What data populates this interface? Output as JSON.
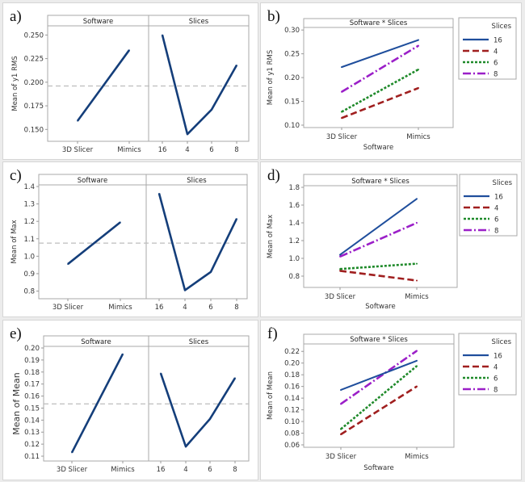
{
  "chart_data": [
    {
      "type": "line",
      "panel_label": "a)",
      "kind": "main_effects",
      "ylabel": "Mean of y1 RMS",
      "ylim": [
        0.14,
        0.258
      ],
      "yticks": [
        "0.150",
        "0.175",
        "0.200",
        "0.225",
        "0.250"
      ],
      "ytick_values": [
        0.15,
        0.175,
        0.2,
        0.225,
        0.25
      ],
      "reference_line": 0.196,
      "facets": [
        {
          "header": "Software",
          "categories": [
            "3D Slicer",
            "Mimics"
          ],
          "values": [
            0.159,
            0.234
          ]
        },
        {
          "header": "Slices",
          "categories": [
            "16",
            "4",
            "6",
            "8"
          ],
          "values": [
            0.25,
            0.145,
            0.171,
            0.218
          ]
        }
      ]
    },
    {
      "type": "line",
      "panel_label": "b)",
      "kind": "interaction",
      "header": "Software * Slices",
      "xlabel": "Software",
      "ylabel": "Mean of y1 RMS",
      "categories": [
        "3D Slicer",
        "Mimics"
      ],
      "ylim": [
        0.1,
        0.302
      ],
      "yticks": [
        "0.10",
        "0.15",
        "0.20",
        "0.25",
        "0.30"
      ],
      "ytick_values": [
        0.1,
        0.15,
        0.2,
        0.25,
        0.3
      ],
      "legend_title": "Slices",
      "legend_position": "right",
      "series": [
        {
          "name": "16",
          "values": [
            0.222,
            0.279
          ]
        },
        {
          "name": "4",
          "values": [
            0.115,
            0.178
          ]
        },
        {
          "name": "6",
          "values": [
            0.128,
            0.217
          ]
        },
        {
          "name": "8",
          "values": [
            0.17,
            0.267
          ]
        }
      ]
    },
    {
      "type": "line",
      "panel_label": "c)",
      "kind": "main_effects",
      "ylabel": "Mean of Max",
      "ylim": [
        0.77,
        1.4
      ],
      "yticks": [
        "0.8",
        "0.9",
        "1.0",
        "1.1",
        "1.2",
        "1.3",
        "1.4"
      ],
      "ytick_values": [
        0.8,
        0.9,
        1.0,
        1.1,
        1.2,
        1.3,
        1.4
      ],
      "reference_line": 1.075,
      "facets": [
        {
          "header": "Software",
          "categories": [
            "3D Slicer",
            "Mimics"
          ],
          "values": [
            0.955,
            1.195
          ]
        },
        {
          "header": "Slices",
          "categories": [
            "16",
            "4",
            "6",
            "8"
          ],
          "values": [
            1.36,
            0.805,
            0.91,
            1.215
          ]
        }
      ]
    },
    {
      "type": "line",
      "panel_label": "d)",
      "kind": "interaction",
      "header": "Software * Slices",
      "xlabel": "Software",
      "ylabel": "Mean of Max",
      "categories": [
        "3D Slicer",
        "Mimics"
      ],
      "ylim": [
        0.7,
        1.8
      ],
      "yticks": [
        "0.8",
        "1.0",
        "1.2",
        "1.4",
        "1.6",
        "1.8"
      ],
      "ytick_values": [
        0.8,
        1.0,
        1.2,
        1.4,
        1.6,
        1.8
      ],
      "legend_title": "Slices",
      "legend_position": "right",
      "series": [
        {
          "name": "16",
          "values": [
            1.04,
            1.67
          ]
        },
        {
          "name": "4",
          "values": [
            0.86,
            0.75
          ]
        },
        {
          "name": "6",
          "values": [
            0.88,
            0.94
          ]
        },
        {
          "name": "8",
          "values": [
            1.02,
            1.4
          ]
        }
      ]
    },
    {
      "type": "line",
      "panel_label": "e)",
      "kind": "main_effects",
      "ylabel": "Mean of Mean",
      "ylim": [
        0.108,
        0.2
      ],
      "yticks": [
        "0.11",
        "0.12",
        "0.13",
        "0.14",
        "0.15",
        "0.16",
        "0.17",
        "0.18",
        "0.19",
        "0.20"
      ],
      "ytick_values": [
        0.11,
        0.12,
        0.13,
        0.14,
        0.15,
        0.16,
        0.17,
        0.18,
        0.19,
        0.2
      ],
      "reference_line": 0.1535,
      "facets": [
        {
          "header": "Software",
          "categories": [
            "3D Slicer",
            "Mimics"
          ],
          "values": [
            0.113,
            0.195
          ]
        },
        {
          "header": "Slices",
          "categories": [
            "16",
            "4",
            "6",
            "8"
          ],
          "values": [
            0.179,
            0.118,
            0.141,
            0.175
          ]
        }
      ]
    },
    {
      "type": "line",
      "panel_label": "f)",
      "kind": "interaction",
      "header": "Software * Slices",
      "xlabel": "Software",
      "ylabel": "Mean of Mean",
      "categories": [
        "3D Slicer",
        "Mimics"
      ],
      "ylim": [
        0.06,
        0.23
      ],
      "yticks": [
        "0.06",
        "0.08",
        "0.10",
        "0.12",
        "0.14",
        "0.16",
        "0.18",
        "0.20",
        "0.22"
      ],
      "ytick_values": [
        0.06,
        0.08,
        0.1,
        0.12,
        0.14,
        0.16,
        0.18,
        0.2,
        0.22
      ],
      "legend_title": "Slices",
      "legend_position": "right",
      "series": [
        {
          "name": "16",
          "values": [
            0.154,
            0.204
          ]
        },
        {
          "name": "4",
          "values": [
            0.078,
            0.16
          ]
        },
        {
          "name": "6",
          "values": [
            0.087,
            0.195
          ]
        },
        {
          "name": "8",
          "values": [
            0.13,
            0.221
          ]
        }
      ]
    }
  ],
  "series_colors": {
    "16": "#1f4e9c",
    "4": "#a01f1f",
    "6": "#1f8a2a",
    "8": "#9b1fc8"
  },
  "main_effect_color": "#143e7a",
  "reference_line_color": "#bdbdbd"
}
